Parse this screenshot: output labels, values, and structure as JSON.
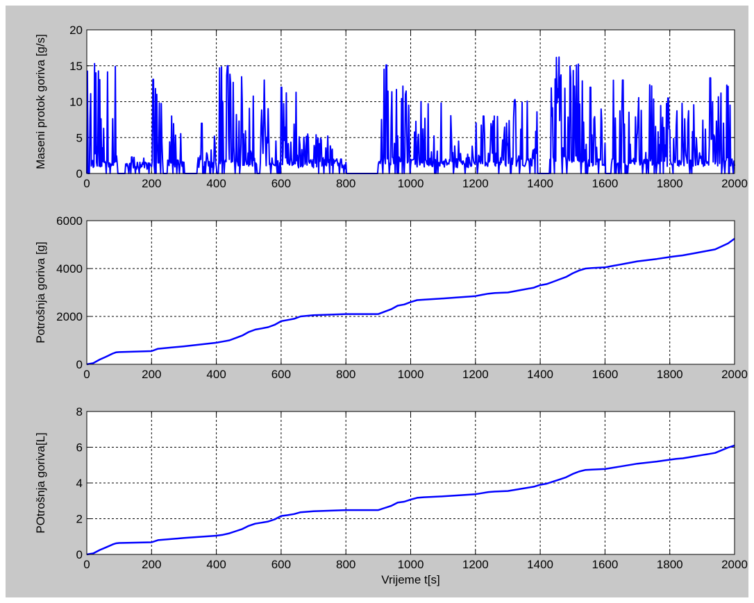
{
  "figure": {
    "background_color": "#c8c8c8",
    "line_color": "#0000ff",
    "grid": true
  },
  "chart_data": [
    {
      "type": "line",
      "xlabel": "",
      "ylabel": "Maseni protok goriva [g/s]",
      "xlim": [
        0,
        2000
      ],
      "ylim": [
        0,
        20
      ],
      "xticks": [
        "0",
        "200",
        "400",
        "600",
        "800",
        "1000",
        "1200",
        "1400",
        "1600",
        "1800",
        "2000"
      ],
      "yticks": [
        "0",
        "5",
        "10",
        "15",
        "20"
      ],
      "grid": true,
      "bursts": [
        {
          "t0": 0,
          "t1": 95,
          "base": 0.8,
          "peak": 15.3
        },
        {
          "t0": 120,
          "t1": 195,
          "base": 0.6,
          "peak": 2.3
        },
        {
          "t0": 195,
          "t1": 235,
          "base": 0.8,
          "peak": 13.1
        },
        {
          "t0": 250,
          "t1": 300,
          "base": 0.8,
          "peak": 8.0
        },
        {
          "t0": 340,
          "t1": 400,
          "base": 0.8,
          "peak": 7.0
        },
        {
          "t0": 405,
          "t1": 525,
          "base": 1.0,
          "peak": 15.0
        },
        {
          "t0": 535,
          "t1": 585,
          "base": 1.0,
          "peak": 13.0
        },
        {
          "t0": 585,
          "t1": 650,
          "base": 1.0,
          "peak": 12.0
        },
        {
          "t0": 650,
          "t1": 780,
          "base": 0.8,
          "peak": 5.5
        },
        {
          "t0": 780,
          "t1": 800,
          "base": 0.6,
          "peak": 2.0
        },
        {
          "t0": 900,
          "t1": 1000,
          "base": 1.2,
          "peak": 15.1
        },
        {
          "t0": 1000,
          "t1": 1130,
          "base": 0.9,
          "peak": 10.0
        },
        {
          "t0": 1130,
          "t1": 1200,
          "base": 0.8,
          "peak": 4.5
        },
        {
          "t0": 1200,
          "t1": 1300,
          "base": 1.0,
          "peak": 8.0
        },
        {
          "t0": 1300,
          "t1": 1390,
          "base": 1.0,
          "peak": 10.3
        },
        {
          "t0": 1430,
          "t1": 1540,
          "base": 1.5,
          "peak": 16.2
        },
        {
          "t0": 1540,
          "t1": 1600,
          "base": 1.0,
          "peak": 12.0
        },
        {
          "t0": 1620,
          "t1": 1760,
          "base": 1.0,
          "peak": 13.0
        },
        {
          "t0": 1760,
          "t1": 1900,
          "base": 1.0,
          "peak": 10.5
        },
        {
          "t0": 1900,
          "t1": 2000,
          "base": 1.0,
          "peak": 13.3
        }
      ]
    },
    {
      "type": "line",
      "xlabel": "",
      "ylabel": "Potrošnja goriva [g]",
      "xlim": [
        0,
        2000
      ],
      "ylim": [
        0,
        6000
      ],
      "xticks": [
        "0",
        "200",
        "400",
        "600",
        "800",
        "1000",
        "1200",
        "1400",
        "1600",
        "1800",
        "2000"
      ],
      "yticks": [
        "0",
        "2000",
        "4000",
        "6000"
      ],
      "grid": true,
      "x": [
        0,
        20,
        40,
        60,
        80,
        90,
        100,
        200,
        220,
        300,
        400,
        420,
        440,
        460,
        480,
        500,
        520,
        540,
        560,
        580,
        600,
        620,
        640,
        660,
        700,
        800,
        900,
        920,
        940,
        960,
        980,
        1000,
        1020,
        1040,
        1100,
        1200,
        1220,
        1240,
        1260,
        1300,
        1340,
        1380,
        1400,
        1420,
        1440,
        1460,
        1480,
        1500,
        1520,
        1540,
        1560,
        1600,
        1620,
        1640,
        1660,
        1700,
        1760,
        1800,
        1820,
        1840,
        1880,
        1900,
        1920,
        1940,
        1980,
        2000
      ],
      "y": [
        0,
        50,
        200,
        320,
        450,
        500,
        510,
        550,
        650,
        750,
        900,
        950,
        1000,
        1100,
        1200,
        1350,
        1450,
        1500,
        1550,
        1650,
        1800,
        1850,
        1900,
        2000,
        2050,
        2100,
        2100,
        2200,
        2300,
        2450,
        2500,
        2600,
        2680,
        2700,
        2750,
        2850,
        2900,
        2950,
        2980,
        3000,
        3100,
        3200,
        3300,
        3350,
        3450,
        3550,
        3650,
        3800,
        3920,
        4000,
        4020,
        4050,
        4100,
        4150,
        4200,
        4300,
        4400,
        4480,
        4520,
        4550,
        4650,
        4700,
        4750,
        4800,
        5050,
        5250
      ]
    },
    {
      "type": "line",
      "xlabel": "Vrijeme t[s]",
      "ylabel": "POtrošnja goriva[L]",
      "xlim": [
        0,
        2000
      ],
      "ylim": [
        0,
        8
      ],
      "xticks": [
        "0",
        "200",
        "400",
        "600",
        "800",
        "1000",
        "1200",
        "1400",
        "1600",
        "1800",
        "2000"
      ],
      "yticks": [
        "0",
        "2",
        "4",
        "6",
        "8"
      ],
      "grid": true,
      "x": [
        0,
        20,
        40,
        60,
        80,
        90,
        100,
        200,
        220,
        300,
        400,
        420,
        440,
        460,
        480,
        500,
        520,
        540,
        560,
        580,
        600,
        620,
        640,
        660,
        700,
        800,
        900,
        920,
        940,
        960,
        980,
        1000,
        1020,
        1040,
        1100,
        1200,
        1220,
        1240,
        1260,
        1300,
        1340,
        1380,
        1400,
        1420,
        1440,
        1460,
        1480,
        1500,
        1520,
        1540,
        1560,
        1600,
        1620,
        1640,
        1660,
        1700,
        1760,
        1800,
        1820,
        1840,
        1880,
        1900,
        1920,
        1940,
        1980,
        2000
      ],
      "y": [
        0,
        0.06,
        0.25,
        0.4,
        0.56,
        0.62,
        0.64,
        0.68,
        0.8,
        0.92,
        1.05,
        1.1,
        1.18,
        1.3,
        1.42,
        1.6,
        1.72,
        1.78,
        1.84,
        1.96,
        2.15,
        2.2,
        2.26,
        2.36,
        2.42,
        2.48,
        2.48,
        2.6,
        2.72,
        2.9,
        2.95,
        3.07,
        3.17,
        3.2,
        3.25,
        3.37,
        3.43,
        3.49,
        3.52,
        3.55,
        3.67,
        3.79,
        3.9,
        3.96,
        4.08,
        4.2,
        4.32,
        4.5,
        4.64,
        4.73,
        4.75,
        4.78,
        4.84,
        4.9,
        4.96,
        5.08,
        5.2,
        5.3,
        5.35,
        5.38,
        5.5,
        5.56,
        5.62,
        5.68,
        5.98,
        6.1
      ]
    }
  ]
}
